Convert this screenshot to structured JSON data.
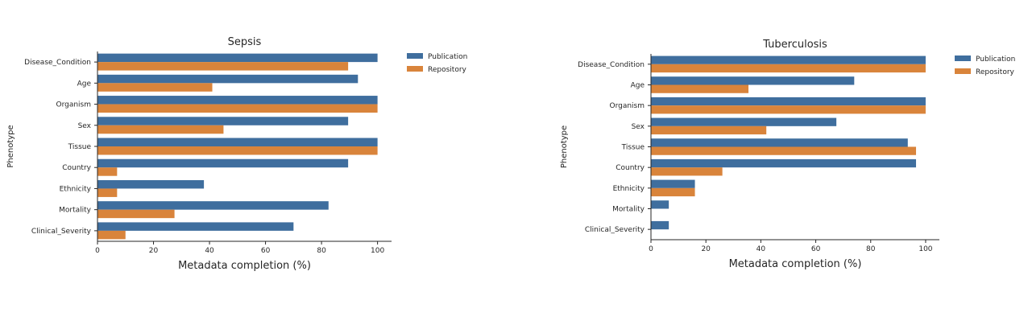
{
  "chart_data": [
    {
      "type": "bar",
      "orientation": "horizontal",
      "title": "Sepsis",
      "xlabel": "Metadata completion (%)",
      "ylabel": "Phenotype",
      "xlim": [
        0,
        105
      ],
      "xticks": [
        0,
        20,
        40,
        60,
        80,
        100
      ],
      "categories": [
        "Disease_Condition",
        "Age",
        "Organism",
        "Sex",
        "Tissue",
        "Country",
        "Ethnicity",
        "Mortality",
        "Clinical_Severity"
      ],
      "series": [
        {
          "name": "Publication",
          "color": "#3f6e9e",
          "values": [
            100,
            93,
            100,
            89.5,
            100,
            89.5,
            38,
            82.5,
            70
          ]
        },
        {
          "name": "Repository",
          "color": "#d9843b",
          "values": [
            89.5,
            41,
            100,
            45,
            100,
            7,
            7,
            27.5,
            10
          ]
        }
      ],
      "legend": "upper-right-outside",
      "grid": false
    },
    {
      "type": "bar",
      "orientation": "horizontal",
      "title": "Tuberculosis",
      "xlabel": "Metadata completion (%)",
      "ylabel": "Phenotype",
      "xlim": [
        0,
        105
      ],
      "xticks": [
        0,
        20,
        40,
        60,
        80,
        100
      ],
      "categories": [
        "Disease_Condition",
        "Age",
        "Organism",
        "Sex",
        "Tissue",
        "Country",
        "Ethnicity",
        "Mortality",
        "Clinical_Severity"
      ],
      "series": [
        {
          "name": "Publication",
          "color": "#3f6e9e",
          "values": [
            100,
            74,
            100,
            67.5,
            93.5,
            96.5,
            16,
            6.5,
            6.5
          ]
        },
        {
          "name": "Repository",
          "color": "#d9843b",
          "values": [
            100,
            35.5,
            100,
            42,
            96.5,
            26,
            16,
            0,
            0
          ]
        }
      ],
      "legend": "upper-right-outside",
      "grid": false
    }
  ]
}
